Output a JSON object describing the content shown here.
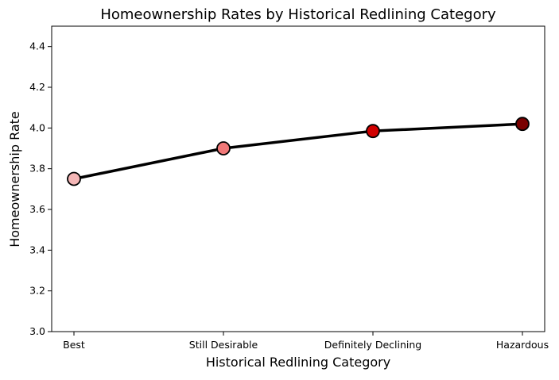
{
  "chart_data": {
    "type": "line",
    "title": "Homeownership Rates by Historical Redlining Category",
    "xlabel": "Historical Redlining Category",
    "ylabel": "Homeownership Rate",
    "categories": [
      "Best",
      "Still Desirable",
      "Definitely Declining",
      "Hazardous"
    ],
    "series": [
      {
        "values": [
          3.75,
          3.9,
          3.985,
          4.02
        ],
        "line_color": "#000000",
        "marker_colors": [
          "#f4b6b6",
          "#f07878",
          "#d10000",
          "#7a0000"
        ],
        "marker_edge_color": "#000000"
      }
    ],
    "ylim": [
      3.0,
      4.5
    ],
    "yticks": [
      "3.0",
      "3.2",
      "3.4",
      "3.6",
      "3.8",
      "4.0",
      "4.2",
      "4.4"
    ],
    "grid": false,
    "legend": false
  }
}
